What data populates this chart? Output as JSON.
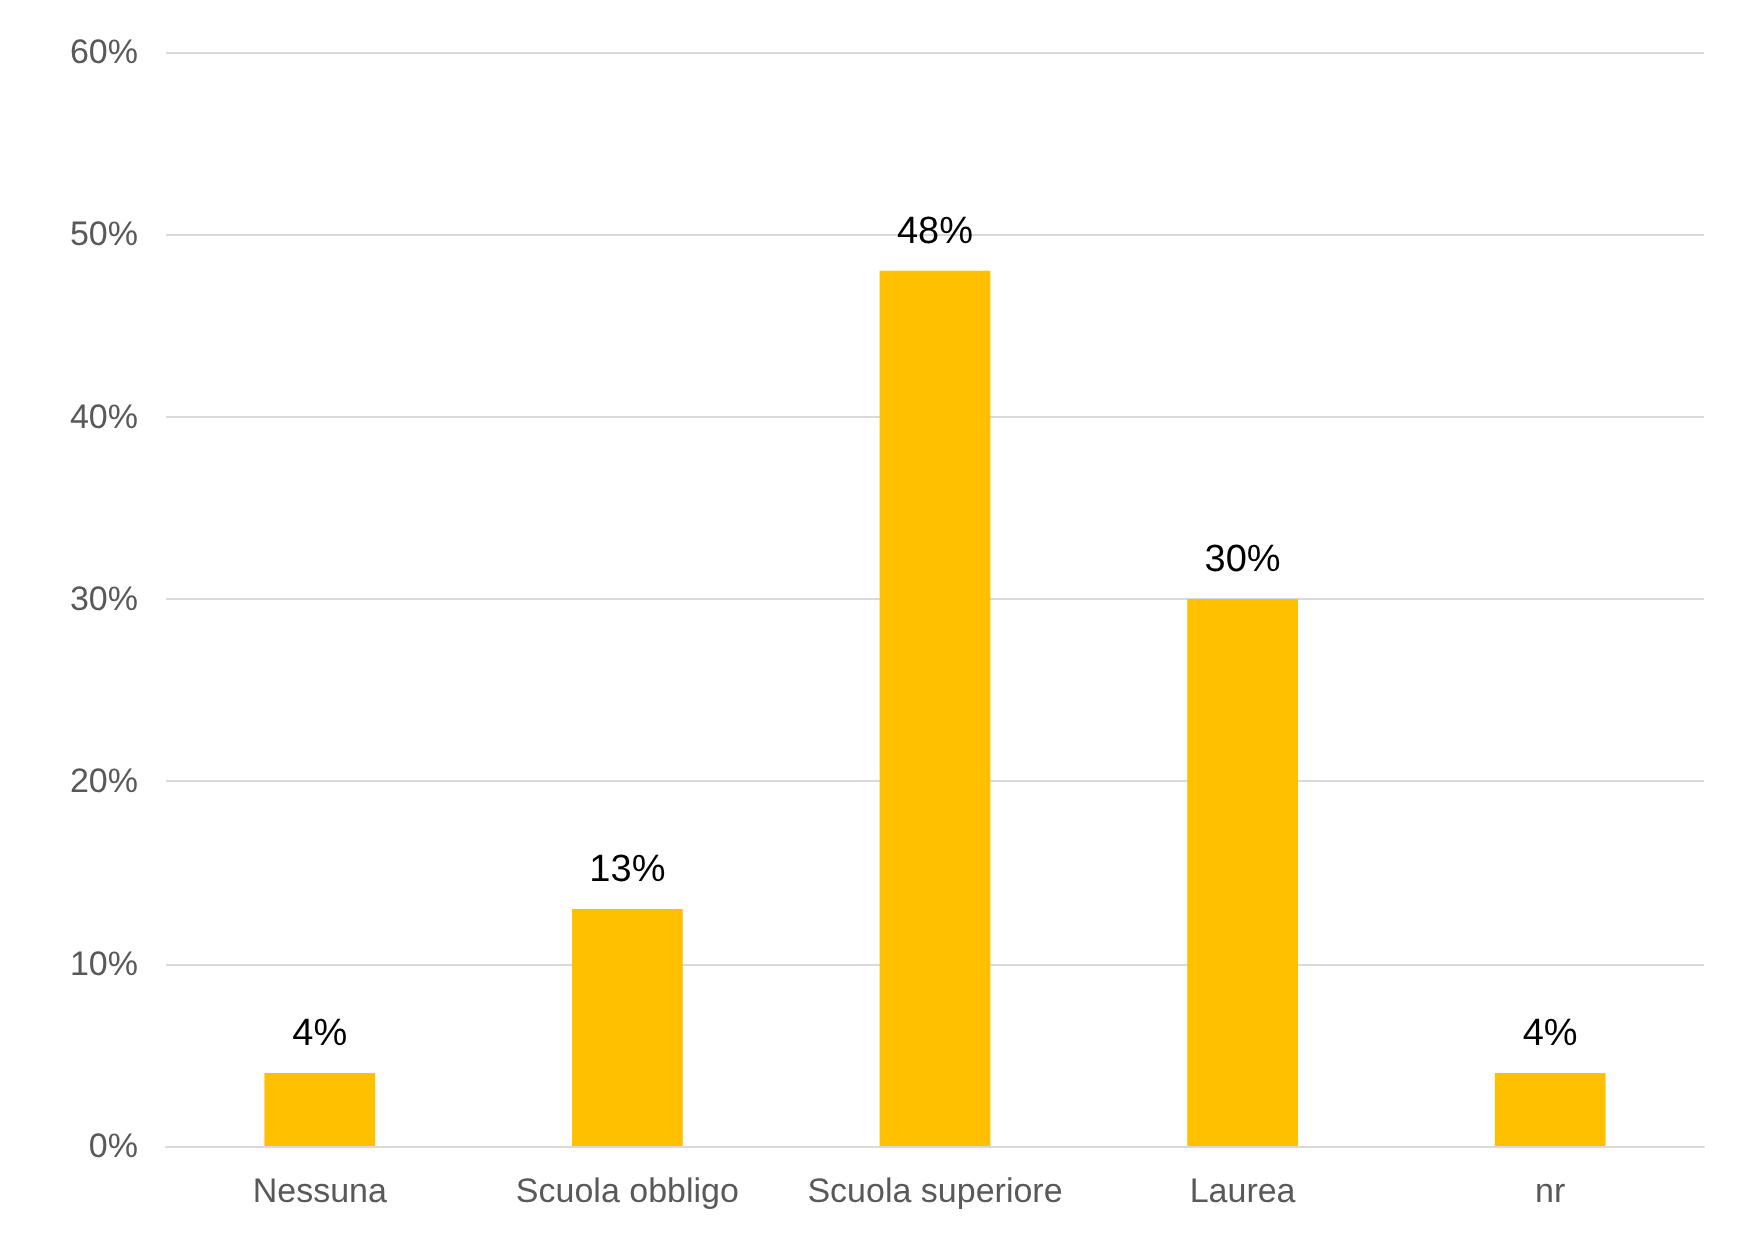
{
  "chart_data": {
    "type": "bar",
    "categories": [
      "Nessuna",
      "Scuola obbligo",
      "Scuola superiore",
      "Laurea",
      "nr"
    ],
    "values": [
      4,
      13,
      48,
      30,
      4
    ],
    "value_labels": [
      "4%",
      "13%",
      "48%",
      "30%",
      "4%"
    ],
    "color": "#ffc000",
    "ylim": [
      0,
      60
    ],
    "yticks": [
      {
        "value": 0,
        "label": "0%"
      },
      {
        "value": 10,
        "label": "10%"
      },
      {
        "value": 20,
        "label": "20%"
      },
      {
        "value": 30,
        "label": "30%"
      },
      {
        "value": 40,
        "label": "40%"
      },
      {
        "value": 50,
        "label": "50%"
      },
      {
        "value": 60,
        "label": "60%"
      }
    ],
    "grid": "y"
  }
}
